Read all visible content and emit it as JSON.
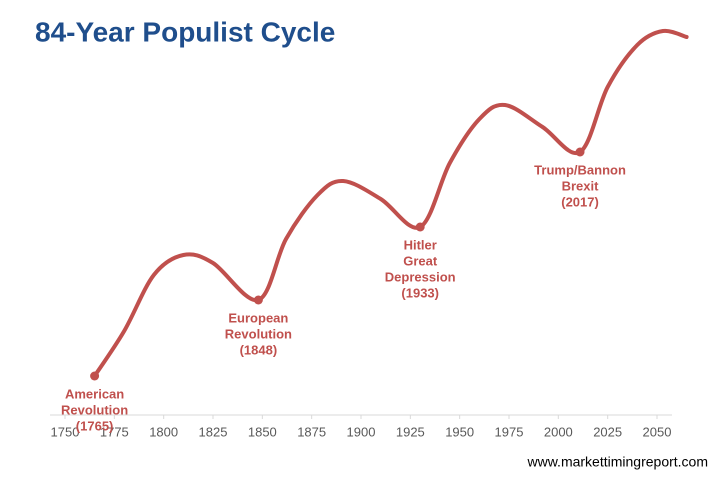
{
  "chart_data": {
    "type": "line",
    "title": "84-Year Populist Cycle",
    "x": [
      1765,
      1780,
      1795,
      1810,
      1825,
      1848,
      1862,
      1878,
      1891,
      1910,
      1930,
      1945,
      1960,
      1973,
      1992,
      2011,
      2025,
      2040,
      2053,
      2065
    ],
    "series": [
      {
        "color": "#c0504d",
        "values": [
          9.75,
          21,
          35,
          40,
          38,
          28.75,
          44,
          55,
          58.5,
          54,
          47,
          63,
          74,
          77.5,
          72,
          65.75,
          82,
          92.5,
          96,
          94.5
        ]
      }
    ],
    "xlim": [
      1750,
      2050
    ],
    "xticks": [
      1750,
      1775,
      1800,
      1825,
      1850,
      1875,
      1900,
      1925,
      1950,
      1975,
      2000,
      2025,
      2050
    ],
    "ylim": [
      0,
      100
    ],
    "annotations": [
      {
        "x": 1765,
        "y": 9.75,
        "lines": [
          "American",
          "Revolution",
          "(1765)"
        ]
      },
      {
        "x": 1848,
        "y": 28.75,
        "lines": [
          "European",
          "Revolution",
          "(1848)"
        ]
      },
      {
        "x": 1930,
        "y": 47,
        "lines": [
          "Hitler",
          "Great",
          "Depression",
          "(1933)"
        ]
      },
      {
        "x": 2011,
        "y": 65.75,
        "lines": [
          "Trump/Bannon",
          "Brexit",
          "(2017)"
        ]
      }
    ],
    "source": "www.markettimingreport.com"
  }
}
